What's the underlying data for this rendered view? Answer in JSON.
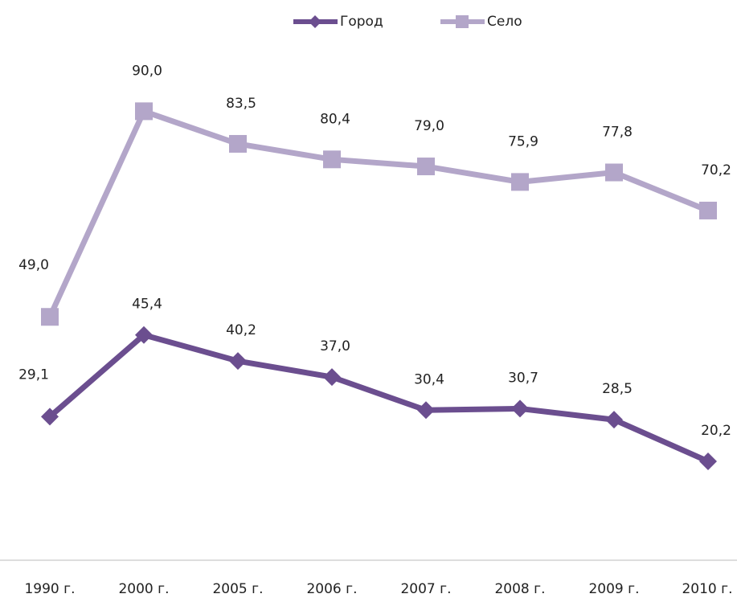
{
  "chart_data": {
    "type": "line",
    "categories": [
      "1990 г.",
      "2000 г.",
      "2005 г.",
      "2006 г.",
      "2007 г.",
      "2008 г.",
      "2009 г.",
      "2010 г."
    ],
    "series": [
      {
        "name": "Город",
        "color": "#6b4e8f",
        "marker": "diamond",
        "values": [
          29.1,
          45.4,
          40.2,
          37.0,
          30.4,
          30.7,
          28.5,
          20.2
        ],
        "value_labels": [
          "29,1",
          "45,4",
          "40,2",
          "37,0",
          "30,4",
          "30,7",
          "28,5",
          "20,2"
        ]
      },
      {
        "name": "Село",
        "color": "#b3a6c9",
        "marker": "square",
        "values": [
          49.0,
          90.0,
          83.5,
          80.4,
          79.0,
          75.9,
          77.8,
          70.2
        ],
        "value_labels": [
          "49,0",
          "90,0",
          "83,5",
          "80,4",
          "79,0",
          "75,9",
          "77,8",
          "70,2"
        ]
      }
    ],
    "ylim": [
      0,
      100
    ],
    "grid": false,
    "legend": "top"
  }
}
